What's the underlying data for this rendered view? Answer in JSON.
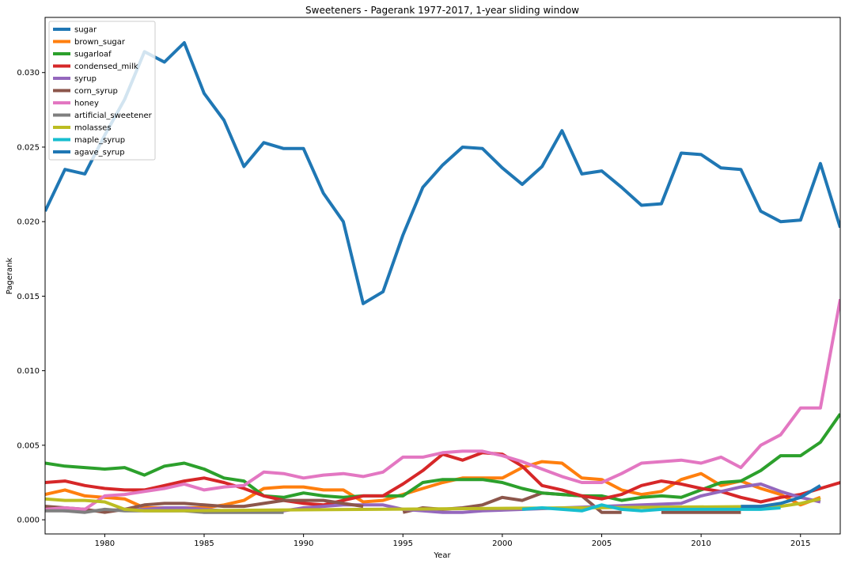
{
  "chart_data": {
    "type": "line",
    "title": "Sweeteners - Pagerank 1977-2017, 1-year sliding window",
    "xlabel": "Year",
    "ylabel": "Pagerank",
    "xlim": [
      1977,
      2017
    ],
    "ylim": [
      -0.00095,
      0.0337
    ],
    "xticks": [
      "1980",
      "1985",
      "1990",
      "1995",
      "2000",
      "2005",
      "2010",
      "2015"
    ],
    "xtick_values": [
      1980,
      1985,
      1990,
      1995,
      2000,
      2005,
      2010,
      2015
    ],
    "yticks": [
      "0.000",
      "0.005",
      "0.010",
      "0.015",
      "0.020",
      "0.025",
      "0.030"
    ],
    "ytick_values": [
      0.0,
      0.005,
      0.01,
      0.015,
      0.02,
      0.025,
      0.03
    ],
    "grid": false,
    "legend_position": "top-left",
    "series": [
      {
        "name": "sugar",
        "color": "#1f77b4",
        "x": [
          1977,
          1978,
          1979,
          1980,
          1981,
          1982,
          1983,
          1984,
          1985,
          1986,
          1987,
          1988,
          1989,
          1990,
          1991,
          1992,
          1993,
          1994,
          1995,
          1996,
          1997,
          1998,
          1999,
          2000,
          2001,
          2002,
          2003,
          2004,
          2005,
          2006,
          2007,
          2008,
          2009,
          2010,
          2011,
          2012,
          2013,
          2014,
          2015,
          2016,
          2017
        ],
        "y": [
          0.0207,
          0.0235,
          0.0232,
          0.0258,
          0.0282,
          0.0314,
          0.0307,
          0.032,
          0.0286,
          0.0268,
          0.0237,
          0.0253,
          0.0249,
          0.0249,
          0.0219,
          0.02,
          0.0145,
          0.0153,
          0.0191,
          0.0223,
          0.0238,
          0.025,
          0.0249,
          0.0236,
          0.0225,
          0.0237,
          0.0261,
          0.0232,
          0.0234,
          0.0223,
          0.0211,
          0.0212,
          0.0246,
          0.0245,
          0.0236,
          0.0235,
          0.0207,
          0.02,
          0.0201,
          0.0239,
          0.0196
        ]
      },
      {
        "name": "brown_sugar",
        "color": "#ff7f0e",
        "x": [
          1977,
          1978,
          1979,
          1980,
          1981,
          1982,
          1983,
          1984,
          1985,
          1986,
          1987,
          1988,
          1989,
          1990,
          1991,
          1992,
          1993,
          1994,
          1995,
          1996,
          1997,
          1998,
          1999,
          2000,
          2001,
          2002,
          2003,
          2004,
          2005,
          2006,
          2007,
          2008,
          2009,
          2010,
          2011,
          2012,
          2013,
          2014,
          2015,
          2016
        ],
        "y": [
          0.0017,
          0.002,
          0.0016,
          0.0015,
          0.0014,
          0.0008,
          0.0008,
          0.0008,
          0.0008,
          0.001,
          0.0013,
          0.0021,
          0.0022,
          0.0022,
          0.002,
          0.002,
          0.0012,
          0.0013,
          0.0017,
          0.0021,
          0.0025,
          0.0028,
          0.0028,
          0.0028,
          0.0035,
          0.0039,
          0.0038,
          0.0028,
          0.0027,
          0.002,
          0.0017,
          0.0019,
          0.0027,
          0.0031,
          0.0023,
          0.0026,
          0.0021,
          0.0017,
          0.001,
          0.0015
        ]
      },
      {
        "name": "sugarloaf",
        "color": "#2ca02c",
        "x": [
          1977,
          1978,
          1979,
          1980,
          1981,
          1982,
          1983,
          1984,
          1985,
          1986,
          1987,
          1988,
          1989,
          1990,
          1991,
          1992,
          1993,
          1994,
          1995,
          1996,
          1997,
          1998,
          1999,
          2000,
          2001,
          2002,
          2003,
          2004,
          2005,
          2006,
          2007,
          2008,
          2009,
          2010,
          2011,
          2012,
          2013,
          2014,
          2015,
          2016,
          2017
        ],
        "y": [
          0.0038,
          0.0036,
          0.0035,
          0.0034,
          0.0035,
          0.003,
          0.0036,
          0.0038,
          0.0034,
          0.0028,
          0.0026,
          0.0016,
          0.0015,
          0.0018,
          0.0016,
          0.0015,
          0.0016,
          0.0016,
          0.0016,
          0.0025,
          0.0027,
          0.0027,
          0.0027,
          0.0025,
          0.0021,
          0.0018,
          0.0017,
          0.0016,
          0.0016,
          0.0013,
          0.0015,
          0.0016,
          0.0015,
          0.002,
          0.0025,
          0.0026,
          0.0033,
          0.0043,
          0.0043,
          0.0052,
          0.0071
        ]
      },
      {
        "name": "condensed_milk",
        "color": "#d62728",
        "x": [
          1977,
          1978,
          1979,
          1980,
          1981,
          1982,
          1983,
          1984,
          1985,
          1986,
          1987,
          1988,
          1989,
          1990,
          1991,
          1992,
          1993,
          1994,
          1995,
          1996,
          1997,
          1998,
          1999,
          2000,
          2001,
          2002,
          2003,
          2004,
          2005,
          2006,
          2007,
          2008,
          2009,
          2010,
          2011,
          2012,
          2013,
          2014,
          2015,
          2016,
          2017
        ],
        "y": [
          0.0025,
          0.0026,
          0.0023,
          0.0021,
          0.002,
          0.002,
          0.0023,
          0.0026,
          0.0028,
          0.0025,
          0.0021,
          0.0016,
          0.0013,
          0.0011,
          0.001,
          0.0013,
          0.0016,
          0.0016,
          0.0024,
          0.0033,
          0.0044,
          0.004,
          0.0045,
          0.0044,
          0.0036,
          0.0023,
          0.002,
          0.0016,
          0.0014,
          0.0017,
          0.0023,
          0.0026,
          0.0024,
          0.0021,
          0.0019,
          0.0015,
          0.0012,
          0.0015,
          0.0017,
          0.0021,
          0.0025
        ]
      },
      {
        "name": "syrup",
        "color": "#9467bd",
        "x": [
          1977,
          1978,
          1979,
          1980,
          1981,
          1982,
          1983,
          1984,
          1985,
          1986,
          1987,
          1988,
          1989,
          1990,
          1991,
          1992,
          1993,
          1994,
          1995,
          1996,
          1997,
          1998,
          1999,
          2009,
          2010,
          2011,
          2012,
          2013,
          2014,
          2015,
          2016
        ],
        "y": [
          0.0007,
          0.0006,
          0.0006,
          0.0006,
          0.0007,
          0.0007,
          0.0008,
          0.0008,
          0.0007,
          0.0006,
          0.0006,
          0.0006,
          0.0006,
          0.0008,
          0.0009,
          0.001,
          0.001,
          0.001,
          0.0007,
          0.0006,
          0.0005,
          0.0005,
          0.0006,
          0.0011,
          0.0016,
          0.0019,
          0.0022,
          0.0024,
          0.0019,
          0.0015,
          0.0012
        ]
      },
      {
        "name": "corn_syrup",
        "color": "#8c564b",
        "x": [
          1977,
          1978,
          1979,
          1980,
          1981,
          1982,
          1983,
          1984,
          1985,
          1986,
          1987,
          1988,
          1989,
          1990,
          1991,
          1992,
          1993
        ],
        "y": [
          0.0009,
          0.0008,
          0.0007,
          0.0005,
          0.0007,
          0.001,
          0.0011,
          0.0011,
          0.001,
          0.0009,
          0.0009,
          0.0011,
          0.0013,
          0.0013,
          0.0013,
          0.0011,
          0.0009
        ]
      },
      {
        "name": "honey",
        "color": "#e377c2",
        "x": [
          1977,
          1978,
          1979,
          1980,
          1981,
          1982,
          1983,
          1984,
          1985,
          1986,
          1987,
          1988,
          1989,
          1990,
          1991,
          1992,
          1993,
          1994,
          1995,
          1996,
          1997,
          1998,
          1999,
          2000,
          2001,
          2002,
          2003,
          2004,
          2005,
          2006,
          2007,
          2008,
          2009,
          2010,
          2011,
          2012,
          2013,
          2014,
          2015,
          2016,
          2017
        ],
        "y": [
          0.0007,
          0.0008,
          0.0007,
          0.0016,
          0.0017,
          0.0019,
          0.0021,
          0.0024,
          0.002,
          0.0022,
          0.0023,
          0.0032,
          0.0031,
          0.0028,
          0.003,
          0.0031,
          0.0029,
          0.0032,
          0.0042,
          0.0042,
          0.0045,
          0.0046,
          0.0046,
          0.0043,
          0.0039,
          0.0034,
          0.0029,
          0.0025,
          0.0025,
          0.0031,
          0.0038,
          0.0039,
          0.004,
          0.0038,
          0.0042,
          0.0035,
          0.005,
          0.0057,
          0.0075,
          0.0075,
          0.0148
        ]
      },
      {
        "name": "artificial_sweetener",
        "color": "#7f7f7f",
        "x": [
          1977,
          1978,
          1979,
          1980,
          1981,
          1982,
          1983,
          1984,
          1985,
          1986,
          1987,
          1988,
          1989
        ],
        "y": [
          0.0006,
          0.0006,
          0.0005,
          0.0007,
          0.0006,
          0.0006,
          0.0006,
          0.0006,
          0.0005,
          0.0005,
          0.0005,
          0.0005,
          0.0005
        ]
      },
      {
        "name": "molasses",
        "color": "#bcbd22",
        "x": [
          1977,
          1978,
          1979,
          1980,
          1981,
          1982,
          1983,
          2014,
          2015,
          2016
        ],
        "y": [
          0.0014,
          0.0013,
          0.0013,
          0.0012,
          0.0007,
          0.0006,
          0.0006,
          0.0009,
          0.0011,
          0.0014
        ]
      },
      {
        "name": "maple_syrup",
        "color": "#17becf",
        "x": [
          2001,
          2002,
          2003,
          2004,
          2005,
          2006,
          2007,
          2008,
          2009,
          2010,
          2011,
          2012,
          2013,
          2014
        ],
        "y": [
          0.0007,
          0.0008,
          0.0007,
          0.0006,
          0.001,
          0.0007,
          0.0006,
          0.0007,
          0.0007,
          0.0007,
          0.0007,
          0.0007,
          0.0007,
          0.0008
        ]
      },
      {
        "name": "agave_syrup",
        "color": "#1f77b4",
        "x": [
          2012,
          2013,
          2014,
          2015,
          2016
        ],
        "y": [
          0.0009,
          0.0009,
          0.0011,
          0.0015,
          0.0023
        ]
      }
    ],
    "extra_segments": [
      {
        "color": "#8c564b",
        "x": [
          1995,
          1996,
          1997,
          1998,
          1999,
          2000,
          2001,
          2002,
          2003,
          2004,
          2005,
          2006
        ],
        "y": [
          0.0005,
          0.0008,
          0.0007,
          0.0008,
          0.001,
          0.0015,
          0.0013,
          0.0018,
          0.0017,
          0.0016,
          0.0005,
          0.0005
        ]
      },
      {
        "color": "#8c564b",
        "x": [
          2008,
          2009,
          2010,
          2011,
          2012
        ],
        "y": [
          0.0005,
          0.0005,
          0.0005,
          0.0005,
          0.0005
        ]
      }
    ]
  }
}
